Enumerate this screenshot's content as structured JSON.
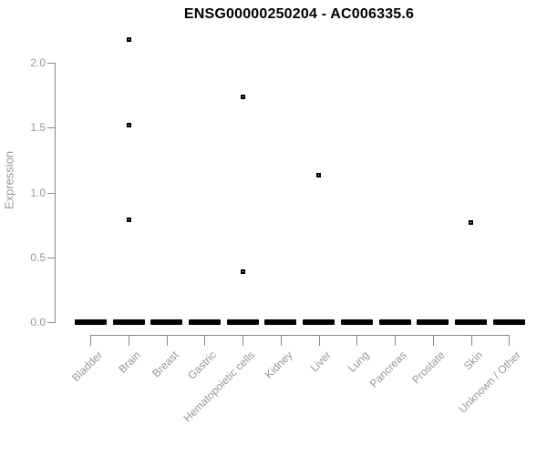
{
  "page": {
    "background": "#ffffff"
  },
  "chart_data": {
    "type": "boxplot",
    "title": "ENSG00000250204 - AC006335.6",
    "ylabel": "Expression",
    "xlabel": "",
    "ylim": [
      0,
      2.2
    ],
    "yticks": [
      "0.0",
      "0.5",
      "1.0",
      "1.5",
      "2.0"
    ],
    "grid": false,
    "legend": false,
    "categories": [
      "Bladder",
      "Brain",
      "Breast",
      "Gastric",
      "Hematopoietic cells",
      "Kidney",
      "Liver",
      "Lung",
      "Pancreas",
      "Prostate",
      "Skin",
      "Unknown / Other"
    ],
    "boxes": [
      {
        "category": "Bladder",
        "median": 0.0,
        "q1": 0.0,
        "q3": 0.0,
        "outliers": []
      },
      {
        "category": "Brain",
        "median": 0.0,
        "q1": 0.0,
        "q3": 0.0,
        "outliers": [
          2.18,
          1.52,
          0.79
        ]
      },
      {
        "category": "Breast",
        "median": 0.0,
        "q1": 0.0,
        "q3": 0.0,
        "outliers": []
      },
      {
        "category": "Gastric",
        "median": 0.0,
        "q1": 0.0,
        "q3": 0.0,
        "outliers": []
      },
      {
        "category": "Hematopoietic cells",
        "median": 0.0,
        "q1": 0.0,
        "q3": 0.0,
        "outliers": [
          1.74,
          0.39
        ]
      },
      {
        "category": "Kidney",
        "median": 0.0,
        "q1": 0.0,
        "q3": 0.0,
        "outliers": []
      },
      {
        "category": "Liver",
        "median": 0.0,
        "q1": 0.0,
        "q3": 0.0,
        "outliers": [
          1.13
        ]
      },
      {
        "category": "Lung",
        "median": 0.0,
        "q1": 0.0,
        "q3": 0.0,
        "outliers": []
      },
      {
        "category": "Pancreas",
        "median": 0.0,
        "q1": 0.0,
        "q3": 0.0,
        "outliers": []
      },
      {
        "category": "Prostate",
        "median": 0.0,
        "q1": 0.0,
        "q3": 0.0,
        "outliers": []
      },
      {
        "category": "Skin",
        "median": 0.0,
        "q1": 0.0,
        "q3": 0.0,
        "outliers": [
          0.77
        ]
      },
      {
        "category": "Unknown / Other",
        "median": 0.0,
        "q1": 0.0,
        "q3": 0.0,
        "outliers": []
      }
    ],
    "colors": {
      "box_fill": "#000000",
      "outlier_fill": "#ffffff",
      "outlier_border": "#000000",
      "axis": "#8a8a8a",
      "tick_label": "#969696",
      "title": "#000000"
    }
  }
}
